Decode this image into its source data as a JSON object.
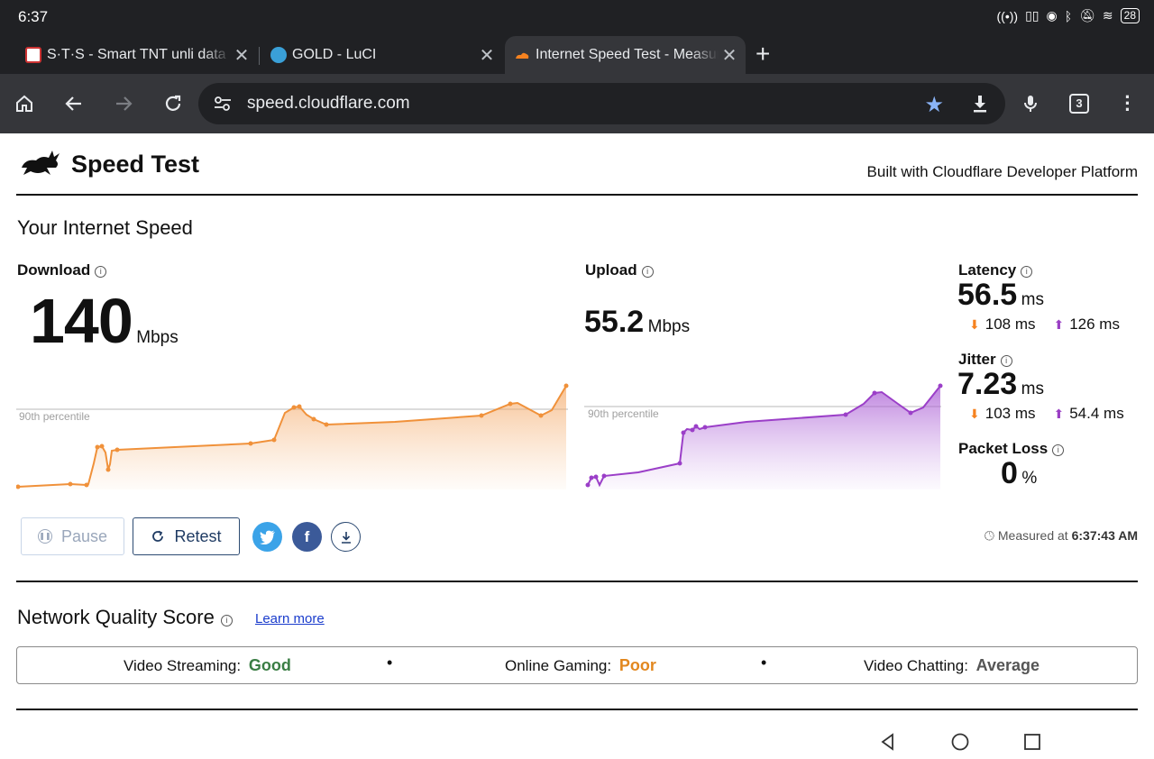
{
  "status_bar": {
    "time": "6:37",
    "battery": "28"
  },
  "tabs": [
    {
      "title": "S·T·S - Smart TNT unli data"
    },
    {
      "title": "GOLD - LuCI"
    },
    {
      "title": "Internet Speed Test - Measure"
    }
  ],
  "toolbar": {
    "url": "speed.cloudflare.com",
    "tab_count": "3"
  },
  "header": {
    "title": "Speed Test",
    "built_with": "Built with Cloudflare Developer Platform"
  },
  "main": {
    "heading": "Your Internet Speed",
    "percentile_label": "90th percentile",
    "download": {
      "label": "Download",
      "value": "140",
      "unit": "Mbps"
    },
    "upload": {
      "label": "Upload",
      "value": "55.2",
      "unit": "Mbps"
    },
    "latency": {
      "label": "Latency",
      "value": "56.5",
      "unit": "ms",
      "down": "108 ms",
      "up": "126 ms"
    },
    "jitter": {
      "label": "Jitter",
      "value": "7.23",
      "unit": "ms",
      "down": "103 ms",
      "up": "54.4 ms"
    },
    "packet_loss": {
      "label": "Packet Loss",
      "value": "0",
      "unit": "%"
    },
    "buttons": {
      "pause": "Pause",
      "retest": "Retest"
    },
    "measured_label": "Measured at",
    "measured_time": "6:37:43 AM"
  },
  "nqs": {
    "title": "Network Quality Score",
    "learn_more": "Learn more",
    "items": [
      {
        "label": "Video Streaming:",
        "value": "Good",
        "color": "#3a7d44"
      },
      {
        "label": "Online Gaming:",
        "value": "Poor",
        "color": "#e2871f"
      },
      {
        "label": "Video Chatting:",
        "value": "Average",
        "color": "#555555"
      }
    ]
  },
  "colors": {
    "download": "#f0913a",
    "upload": "#9b3fc8"
  }
}
